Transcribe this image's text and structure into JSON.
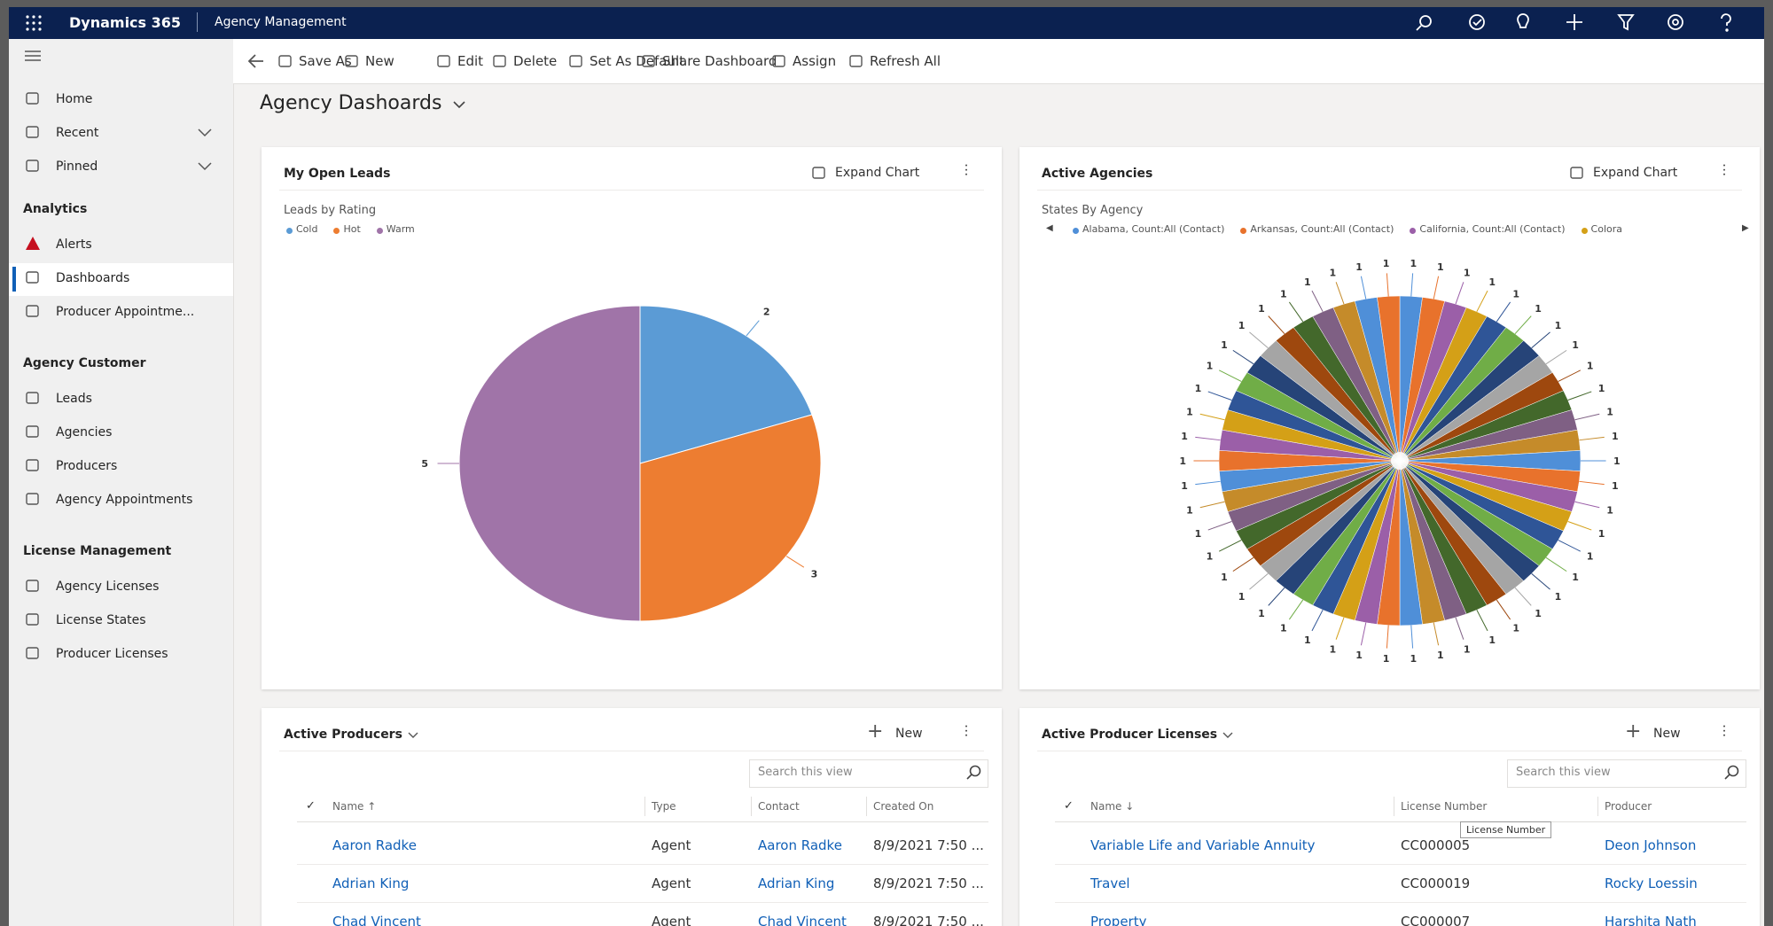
{
  "header": {
    "app_name": "Dynamics 365",
    "area": "Agency Management"
  },
  "toolbar": [
    "Save As",
    "New",
    "Edit",
    "Delete",
    "Set As Default",
    "Share Dashboard",
    "Assign",
    "Refresh All"
  ],
  "nav": {
    "top": [
      "Home",
      "Recent",
      "Pinned"
    ],
    "sections": [
      {
        "title": "Analytics",
        "items": [
          "Alerts",
          "Dashboards",
          "Producer Appointme..."
        ]
      },
      {
        "title": "Agency Customer",
        "items": [
          "Leads",
          "Agencies",
          "Producers",
          "Agency Appointments"
        ]
      },
      {
        "title": "License Management",
        "items": [
          "Agency Licenses",
          "License States",
          "Producer Licenses"
        ]
      }
    ]
  },
  "dashboard_title": "Agency Dashoards",
  "chart_data": [
    {
      "type": "pie",
      "title": "My Open Leads",
      "action": "Expand Chart",
      "subtitle": "Leads by Rating",
      "categories": [
        "Cold",
        "Hot",
        "Warm"
      ],
      "values": [
        2,
        3,
        5
      ],
      "colors": [
        "#5b9bd5",
        "#ed7d31",
        "#a074a8"
      ]
    },
    {
      "type": "pie",
      "title": "Active Agencies",
      "action": "Expand Chart",
      "subtitle": "States By Agency",
      "categories": [
        "Alabama, Count:All (Contact)",
        "Arkansas, Count:All (Contact)",
        "California, Count:All (Contact)",
        "Colora",
        null,
        null,
        null,
        null,
        null,
        null,
        null,
        null,
        null,
        null,
        null,
        null,
        null,
        null,
        null,
        null,
        null,
        null,
        null,
        null,
        null,
        null,
        null,
        null,
        null,
        null,
        null,
        null,
        null,
        null,
        null,
        null,
        null,
        null,
        null,
        null,
        null,
        null,
        null,
        null,
        null,
        null,
        null,
        null,
        null,
        null
      ],
      "values": [
        1,
        1,
        1,
        1,
        1,
        1,
        1,
        1,
        1,
        1,
        1,
        1,
        1,
        1,
        1,
        1,
        1,
        1,
        1,
        1,
        1,
        1,
        1,
        1,
        1,
        1,
        1,
        1,
        1,
        1,
        1,
        1,
        1,
        1,
        1,
        1,
        1,
        1,
        1,
        1,
        1,
        1,
        1,
        1,
        1,
        1,
        1,
        1,
        1,
        1
      ],
      "colors": [
        "#4f8fd8",
        "#e8722c",
        "#9b5fa8",
        "#d4a017",
        "#2f5597",
        "#70ad47",
        "#264478",
        "#a5a5a5",
        "#9e480e",
        "#43682b",
        "#7f6084",
        "#c58b2a"
      ]
    }
  ],
  "grids": [
    {
      "title": "Active Producers",
      "new_label": "New",
      "search": "Search this view",
      "columns": [
        "Name ↑",
        "Type",
        "Contact",
        "Created On"
      ],
      "rows": [
        [
          "Aaron Radke",
          "Agent",
          "Aaron Radke",
          "8/9/2021 7:50 ..."
        ],
        [
          "Adrian King",
          "Agent",
          "Adrian King",
          "8/9/2021 7:50 ..."
        ],
        [
          "Chad Vincent",
          "Agent",
          "Chad Vincent",
          "8/9/2021 7:50 ..."
        ]
      ]
    },
    {
      "title": "Active Producer Licenses",
      "new_label": "New",
      "search": "Search this view",
      "columns": [
        "Name ↓",
        "License Number",
        "Producer"
      ],
      "rows": [
        [
          "Variable Life and Variable Annuity",
          "CC000005",
          "Deon Johnson"
        ],
        [
          "Travel",
          "CC000019",
          "Rocky Loessin"
        ],
        [
          "Property",
          "CC000007",
          "Harshita Nath"
        ]
      ],
      "tooltip": "License Number"
    }
  ]
}
